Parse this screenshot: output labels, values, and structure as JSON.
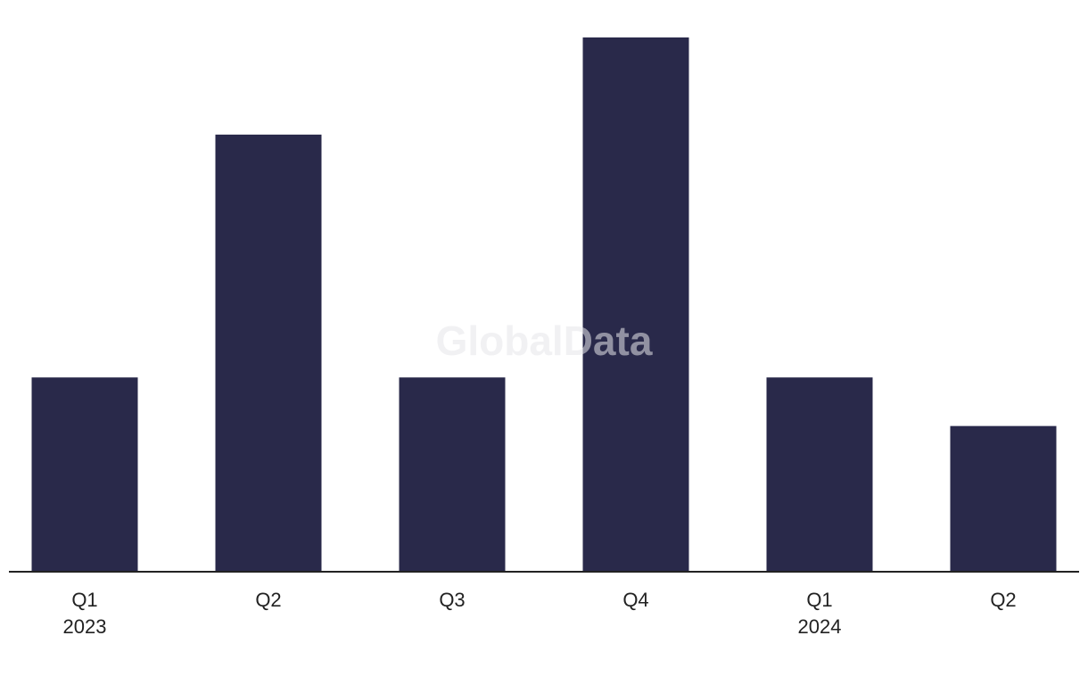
{
  "chart_data": {
    "type": "bar",
    "watermark": "GlobalData",
    "categories": [
      "Q1",
      "Q2",
      "Q3",
      "Q4",
      "Q1",
      "Q2"
    ],
    "category_years": [
      "2023",
      null,
      null,
      null,
      "2024",
      null
    ],
    "values": [
      4,
      9,
      4,
      11,
      4,
      3
    ],
    "color": "#29294a",
    "ylim": [
      0,
      11
    ]
  }
}
